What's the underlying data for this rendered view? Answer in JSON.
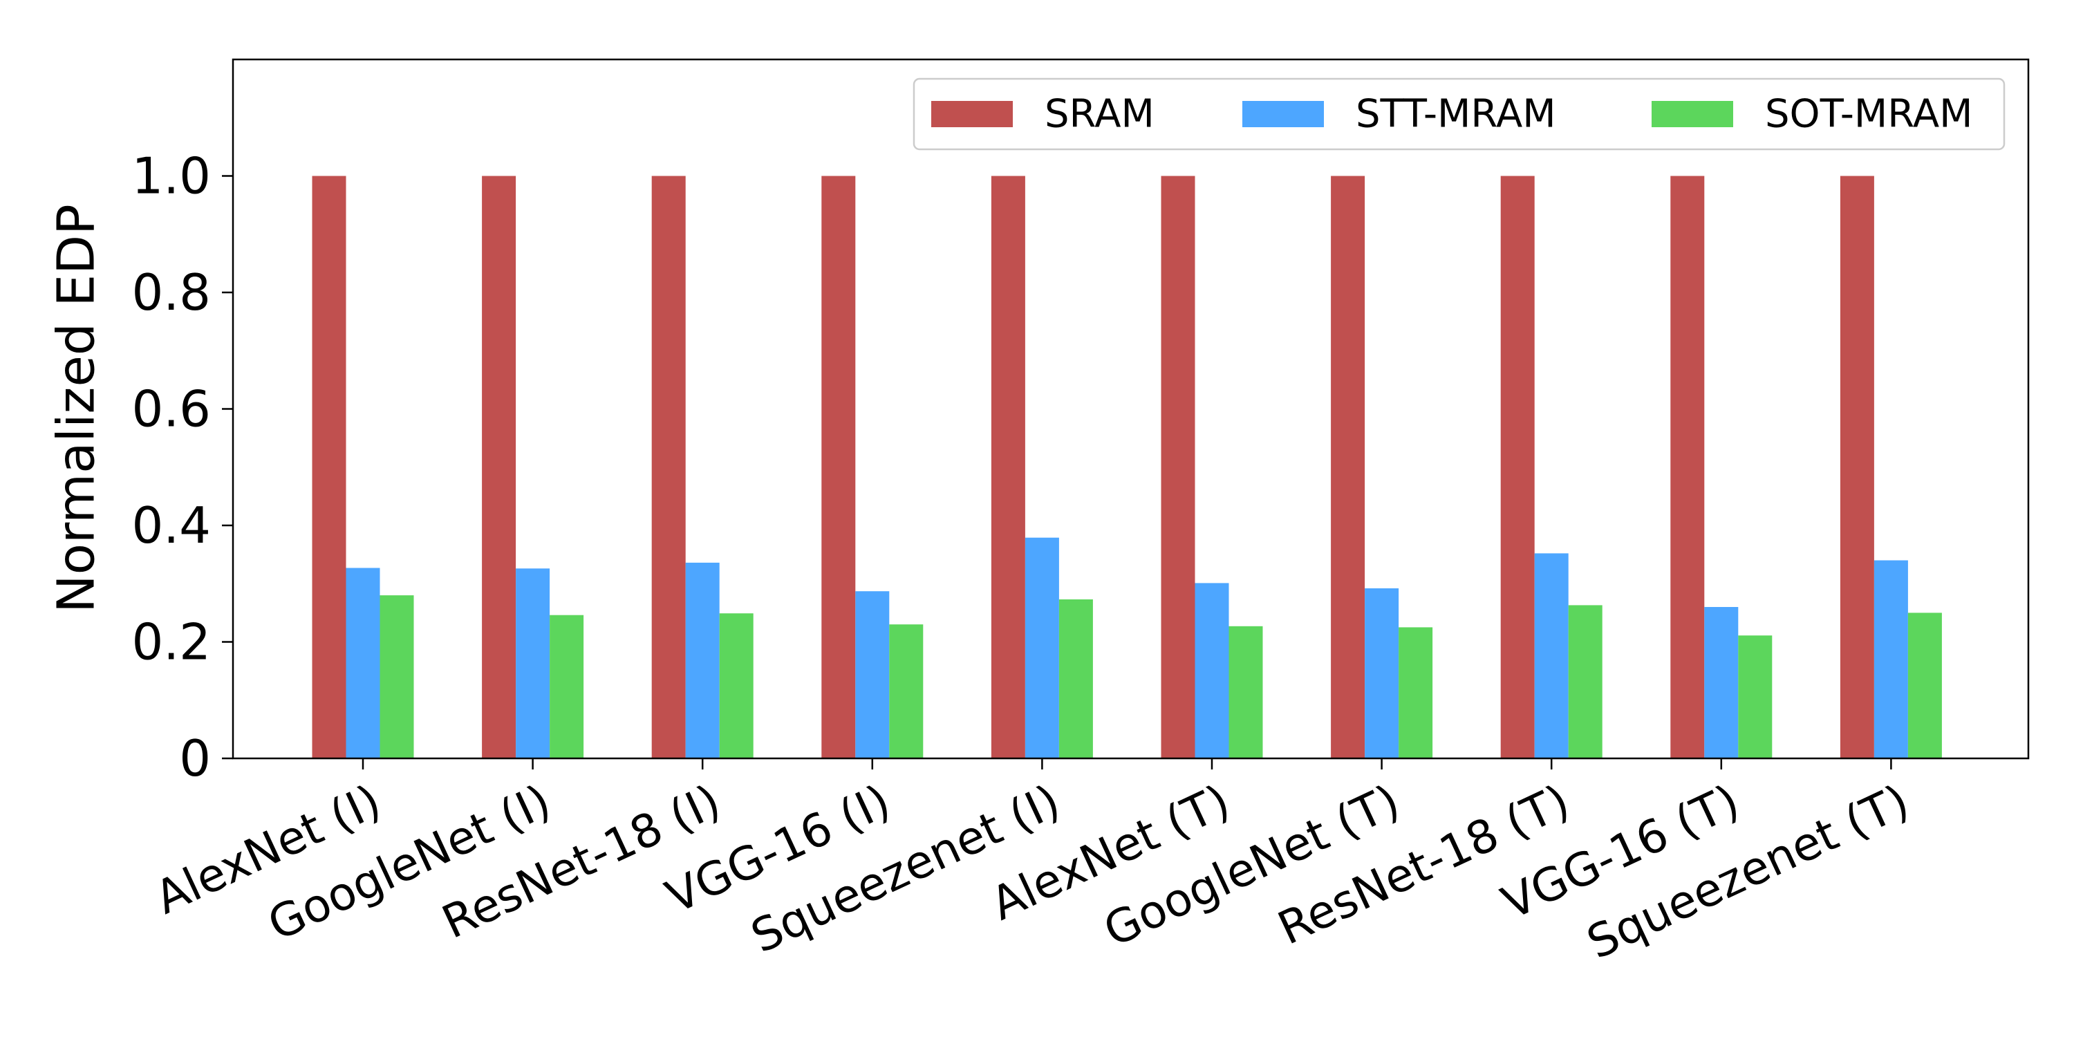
{
  "chart_data": {
    "type": "bar",
    "title": "",
    "xlabel": "",
    "ylabel": "Normalized EDP",
    "ylim": [
      0,
      1.2
    ],
    "yticks": [
      0,
      0.2,
      0.4,
      0.6,
      0.8,
      1.0
    ],
    "ytick_labels": [
      "0",
      "0.2",
      "0.4",
      "0.6",
      "0.8",
      "1.0"
    ],
    "grid": false,
    "legend_position": "top-right",
    "categories": [
      "AlexNet (I)",
      "GoogleNet (I)",
      "ResNet-18 (I)",
      "VGG-16 (I)",
      "Squeezenet (I)",
      "AlexNet (T)",
      "GoogleNet (T)",
      "ResNet-18 (T)",
      "VGG-16 (T)",
      "Squeezenet (T)"
    ],
    "series": [
      {
        "name": "SRAM",
        "color": "#C0504F",
        "values": [
          1.0,
          1.0,
          1.0,
          1.0,
          1.0,
          1.0,
          1.0,
          1.0,
          1.0,
          1.0
        ]
      },
      {
        "name": "STT-MRAM",
        "color": "#4DA6FF",
        "values": [
          0.327,
          0.326,
          0.336,
          0.287,
          0.379,
          0.301,
          0.292,
          0.352,
          0.26,
          0.34
        ]
      },
      {
        "name": "SOT-MRAM",
        "color": "#5CD65C",
        "values": [
          0.28,
          0.246,
          0.249,
          0.23,
          0.273,
          0.227,
          0.225,
          0.263,
          0.211,
          0.25
        ]
      }
    ]
  }
}
